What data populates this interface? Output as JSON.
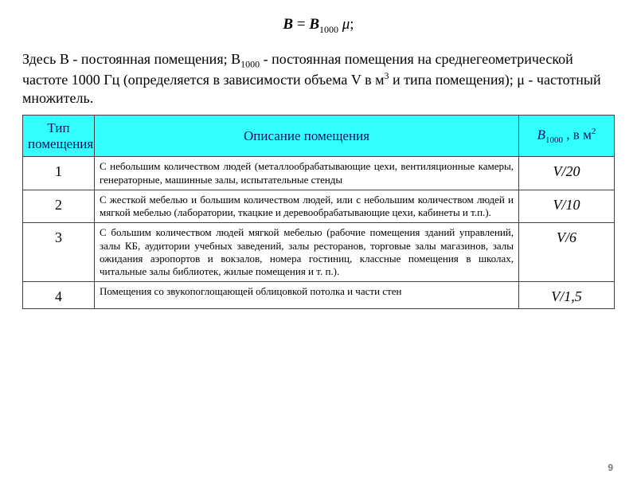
{
  "formula_html": "<span class='bold'>B</span> = <span class='bold'>B</span><span class='sub'>1000</span> <span class='mu'>μ</span>;",
  "paragraph_html": "Здесь В - постоянная помещения; В<span class='sub'>1000</span> - постоянная помещения на среднегеометрической частоте 1000 Гц (определяется в зависимости объема V в м<span class='sup'>3</span> и типа помещения);  μ - частотный множитель.",
  "headers": {
    "type_html": "Тип<br>помещения",
    "desc": "Описание помещения",
    "b_html": "<i>B</i><span class='sub'>1000</span> , в м<span class='sup'>2</span>"
  },
  "rows": [
    {
      "num": "1",
      "desc": "С небольшим количеством людей (металлообрабатывающие цехи, вентиляционные камеры, генераторные, машинные залы, испытательные стенды",
      "val_html": "<i>V</i>/20"
    },
    {
      "num": "2",
      "desc": "С жесткой мебелью и большим количеством людей, или с небольшим количеством людей и мягкой мебелью (лаборатории, ткацкие и деревообрабатывающие цехи, кабинеты и т.п.).",
      "val_html": "<i>V</i>/10"
    },
    {
      "num": "3",
      "desc": "С большим количеством людей  мягкой мебелью (рабочие помещения зданий управлений, залы КБ, аудитории учебных заведений, залы ресторанов, торговые залы магазинов, залы ожидания аэропортов и вокзалов, номера гостиниц, классные помещения в школах, читальные залы библиотек, жилые помещения и т. п.).",
      "val_html": "<i>V</i>/6"
    },
    {
      "num": "4",
      "desc": "Помещения со звукопоглощающей облицовкой потолка и части стен",
      "val_html": "<i>V</i>/1,5"
    }
  ],
  "page_number": "9",
  "colors": {
    "header_bg": "#33ffff",
    "header_text": "#0d0d6b",
    "border": "#404040",
    "body_text": "#000000",
    "pagenum_text": "#7a7a7a"
  }
}
